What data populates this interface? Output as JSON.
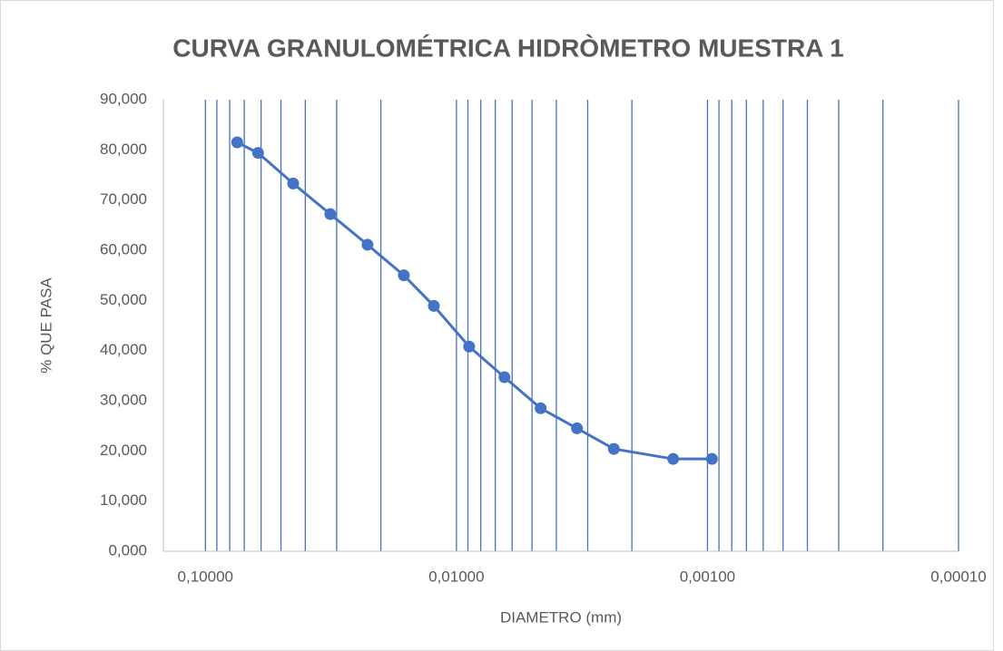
{
  "chart_data": {
    "type": "line",
    "title": "CURVA GRANULOMÉTRICA HIDRÒMETRO MUESTRA 1",
    "x_label": "DIAMETRO (mm)",
    "y_label": "% QUE PASA",
    "x": [
      0.0747,
      0.0617,
      0.0447,
      0.0318,
      0.0226,
      0.0162,
      0.0123,
      0.0089,
      0.00644,
      0.00462,
      0.00331,
      0.00236,
      0.00137,
      0.00096
    ],
    "series": [
      {
        "name": "% QUE PASA",
        "color": "#4472c4",
        "values": [
          81.5,
          79.4,
          73.3,
          67.2,
          61.1,
          55.0,
          48.9,
          40.8,
          34.7,
          28.5,
          24.5,
          20.4,
          18.4,
          18.4
        ]
      }
    ],
    "xlim": [
      0.147,
      0.0001
    ],
    "xticks": [
      {
        "value": 0.1,
        "label": "0,10000"
      },
      {
        "value": 0.01,
        "label": "0,01000"
      },
      {
        "value": 0.001,
        "label": "0,00100"
      },
      {
        "value": 0.0001,
        "label": "0,00010"
      }
    ],
    "x_log": true,
    "x_reversed": true,
    "ylim": [
      0,
      90
    ],
    "yticks": [
      {
        "value": 0,
        "label": "0,000"
      },
      {
        "value": 10,
        "label": "10,000"
      },
      {
        "value": 20,
        "label": "20,000"
      },
      {
        "value": 30,
        "label": "30,000"
      },
      {
        "value": 40,
        "label": "40,000"
      },
      {
        "value": 50,
        "label": "50,000"
      },
      {
        "value": 60,
        "label": "60,000"
      },
      {
        "value": 70,
        "label": "70,000"
      },
      {
        "value": 80,
        "label": "80,000"
      },
      {
        "value": 90,
        "label": "90,000"
      }
    ],
    "grid": true,
    "minor_grid": true
  }
}
